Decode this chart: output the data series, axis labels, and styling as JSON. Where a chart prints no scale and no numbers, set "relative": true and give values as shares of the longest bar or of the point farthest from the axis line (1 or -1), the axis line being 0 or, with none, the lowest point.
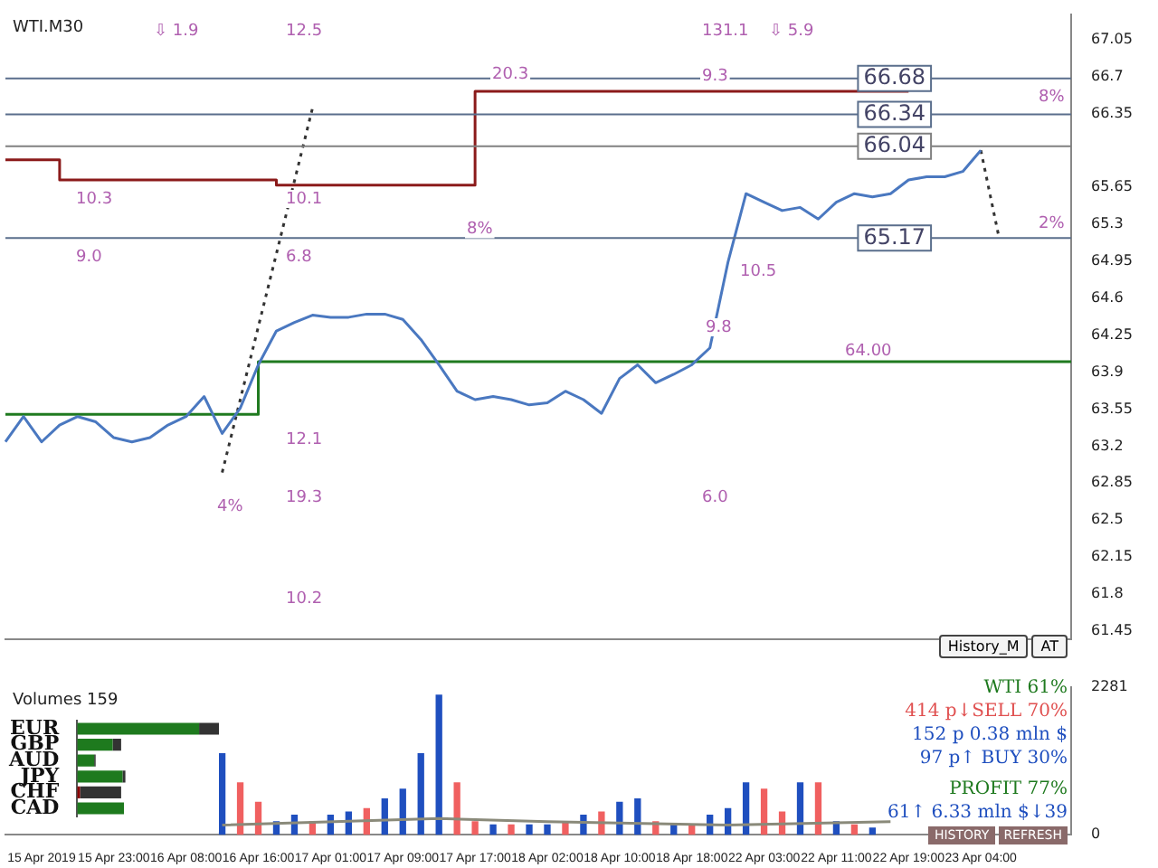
{
  "chart_data": [
    {
      "type": "line",
      "title": "WTI.M30",
      "ylim": [
        61.37,
        67.29
      ],
      "yticks": [
        67.05,
        66.7,
        66.35,
        65.65,
        65.3,
        64.95,
        64.6,
        64.25,
        63.9,
        63.55,
        63.2,
        62.85,
        62.5,
        62.15,
        61.8,
        61.45
      ],
      "grid": false,
      "legend": false,
      "marker": "none",
      "categories": [
        null,
        null,
        null,
        null,
        null,
        null,
        null,
        null,
        null,
        null,
        null,
        null,
        null,
        null,
        null,
        null,
        null,
        null,
        null,
        null,
        null,
        null,
        null,
        null,
        null,
        null,
        null,
        null,
        null,
        null,
        null,
        null,
        null,
        null,
        null,
        null,
        null,
        null,
        null,
        null,
        null,
        null,
        null,
        null,
        null,
        null,
        null,
        null,
        null,
        null,
        null,
        null,
        null,
        null,
        null,
        null,
        null,
        null,
        null,
        null
      ],
      "series": [
        {
          "color": "#4a78c0",
          "values": [
            63.24,
            63.48,
            63.24,
            63.4,
            63.48,
            63.43,
            63.28,
            63.24,
            63.28,
            63.4,
            63.48,
            63.67,
            63.32,
            63.56,
            63.97,
            64.29,
            64.37,
            64.44,
            64.42,
            64.42,
            64.45,
            64.45,
            64.4,
            64.21,
            63.97,
            63.72,
            63.64,
            63.67,
            63.64,
            63.59,
            63.61,
            63.72,
            63.64,
            63.51,
            63.84,
            63.97,
            63.8,
            63.88,
            63.97,
            64.13,
            64.94,
            65.59,
            65.51,
            65.43,
            65.46,
            65.35,
            65.51,
            65.59,
            65.56,
            65.59,
            65.72,
            65.75,
            65.75,
            65.8,
            66.0,
            null,
            null,
            null,
            null,
            null
          ]
        },
        {
          "type": "step",
          "color": "#1f7a1f",
          "values": [
            63.5,
            63.5,
            63.5,
            63.5,
            63.5,
            63.5,
            63.5,
            63.5,
            63.5,
            63.5,
            63.5,
            63.5,
            63.5,
            63.5,
            63.5,
            64.0,
            64.0,
            64.0,
            64.0,
            64.0,
            64.0,
            64.0,
            64.0,
            64.0,
            64.0,
            64.0,
            64.0,
            64.0,
            64.0,
            64.0,
            64.0,
            64.0,
            64.0,
            64.0,
            64.0,
            64.0,
            64.0,
            64.0,
            64.0,
            64.0,
            64.0,
            64.0,
            64.0,
            64.0,
            64.0,
            64.0,
            64.0,
            64.0,
            64.0,
            64.0,
            64.0,
            64.0,
            64.0,
            64.0,
            64.0,
            64.0,
            64.0,
            64.0,
            64.0,
            64.0
          ]
        },
        {
          "type": "step",
          "color": "#8b1a1a",
          "values": [
            65.91,
            65.91,
            65.91,
            65.91,
            65.72,
            65.72,
            65.72,
            65.72,
            65.72,
            65.72,
            65.72,
            65.72,
            65.72,
            65.72,
            65.72,
            65.72,
            65.67,
            65.67,
            65.67,
            65.67,
            65.67,
            65.67,
            65.67,
            65.67,
            65.67,
            65.67,
            65.67,
            66.56,
            66.56,
            66.56,
            66.56,
            66.56,
            66.56,
            66.56,
            66.56,
            66.56,
            66.56,
            66.56,
            66.56,
            66.56,
            66.56,
            66.56,
            66.56,
            66.56,
            66.56,
            66.56,
            66.56,
            66.56,
            66.56,
            66.56,
            66.56,
            null,
            null,
            null,
            null,
            null,
            null,
            null,
            null,
            null
          ]
        },
        {
          "type": "line",
          "color": "#333333",
          "line_style": "dotted",
          "values": [
            null,
            null,
            null,
            null,
            null,
            null,
            null,
            null,
            null,
            null,
            null,
            null,
            62.95,
            null,
            null,
            null,
            null,
            66.4,
            null,
            null,
            null,
            null,
            null,
            null,
            null,
            null,
            null,
            null,
            null,
            null,
            null,
            null,
            null,
            null,
            null,
            null,
            null,
            null,
            null,
            null,
            null,
            null,
            null,
            null,
            null,
            null,
            null,
            null,
            null,
            null,
            null,
            null,
            null,
            null,
            null,
            null,
            null,
            null,
            null,
            null
          ]
        },
        {
          "type": "line",
          "color": "#333333",
          "line_style": "dotted",
          "values": [
            null,
            null,
            null,
            null,
            null,
            null,
            null,
            null,
            null,
            null,
            null,
            null,
            null,
            null,
            null,
            null,
            null,
            null,
            null,
            null,
            null,
            null,
            null,
            null,
            null,
            null,
            null,
            null,
            null,
            null,
            null,
            null,
            null,
            null,
            null,
            null,
            null,
            null,
            null,
            null,
            null,
            null,
            null,
            null,
            null,
            null,
            null,
            null,
            null,
            null,
            null,
            null,
            null,
            null,
            66.0,
            65.18,
            null,
            null,
            null,
            null
          ]
        }
      ],
      "ref_lines": [
        {
          "axis": "y",
          "value": 66.68,
          "label": "66.68",
          "color": "#5a6e8c"
        },
        {
          "axis": "y",
          "value": 66.34,
          "label": "66.34",
          "color": "#5a6e8c"
        },
        {
          "axis": "y",
          "value": 66.04,
          "label": "66.04",
          "color": "#808080"
        },
        {
          "axis": "y",
          "value": 65.17,
          "label": "65.17",
          "color": "#5a6e8c"
        }
      ],
      "annotations": [
        "⇩ 1.9",
        "12.5",
        "131.1",
        "⇩ 5.9",
        {
          "text": "20.3",
          "y": 66.62
        },
        {
          "text": "9.3",
          "y": 66.6
        },
        {
          "text": "8%",
          "y": 66.4
        },
        "10.3",
        "10.1",
        "9.0",
        "6.8",
        {
          "text": "8%",
          "y": 65.15
        },
        {
          "text": "2%",
          "y": 65.2
        },
        "10.5",
        "9.8",
        {
          "text": "64.00",
          "y": 64.0
        },
        "12.1",
        "19.3",
        "4%",
        "6.0",
        "10.2",
        "History_M",
        "AT"
      ]
    },
    {
      "type": "bar",
      "title": "Volumes 159",
      "ylim": [
        0,
        2281
      ],
      "yticks": [
        0,
        2281
      ],
      "grid": false,
      "legend": false,
      "categories": [
        null,
        null,
        "15 Apr 2019",
        null,
        null,
        null,
        "15 Apr 23:00",
        null,
        null,
        null,
        "16 Apr 08:00",
        null,
        null,
        null,
        "16 Apr 16:00",
        null,
        null,
        null,
        "17 Apr 01:00",
        null,
        null,
        null,
        "17 Apr 09:00",
        null,
        null,
        null,
        "17 Apr 17:00",
        null,
        null,
        null,
        "18 Apr 02:00",
        null,
        null,
        null,
        "18 Apr 10:00",
        null,
        null,
        null,
        "18 Apr 18:00",
        null,
        null,
        null,
        "22 Apr 03:00",
        null,
        null,
        null,
        "22 Apr 11:00",
        null,
        null,
        null,
        "22 Apr 19:00",
        null,
        null,
        null,
        "23 Apr 04:00",
        null,
        null,
        null,
        null,
        null
      ],
      "series": [
        {
          "values": [
            null,
            null,
            null,
            null,
            null,
            null,
            null,
            null,
            null,
            null,
            null,
            null,
            1250,
            800,
            500,
            200,
            300,
            200,
            300,
            350,
            400,
            550,
            700,
            1250,
            2150,
            800,
            200,
            150,
            150,
            150,
            150,
            200,
            300,
            350,
            500,
            550,
            200,
            150,
            150,
            300,
            400,
            800,
            700,
            350,
            800,
            800,
            200,
            150,
            100,
            null,
            null,
            null,
            null,
            null,
            null,
            null,
            null,
            null,
            null,
            null
          ],
          "colors": [
            "#1f4fbf",
            "#1f4fbf",
            "#1f4fbf",
            "#1f4fbf",
            "#1f4fbf",
            "#1f4fbf",
            "#1f4fbf",
            "#1f4fbf",
            "#1f4fbf",
            "#1f4fbf",
            "#1f4fbf",
            "#1f4fbf",
            "#1f4fbf",
            "#f06060",
            "#f06060",
            "#1f4fbf",
            "#1f4fbf",
            "#f06060",
            "#1f4fbf",
            "#1f4fbf",
            "#f06060",
            "#1f4fbf",
            "#1f4fbf",
            "#1f4fbf",
            "#1f4fbf",
            "#f06060",
            "#f06060",
            "#1f4fbf",
            "#f06060",
            "#1f4fbf",
            "#1f4fbf",
            "#f06060",
            "#1f4fbf",
            "#f06060",
            "#1f4fbf",
            "#1f4fbf",
            "#f06060",
            "#1f4fbf",
            "#f06060",
            "#1f4fbf",
            "#1f4fbf",
            "#1f4fbf",
            "#f06060",
            "#f06060",
            "#1f4fbf",
            "#f06060",
            "#1f4fbf",
            "#f06060",
            "#1f4fbf",
            "#1f4fbf",
            "#1f4fbf",
            "#1f4fbf",
            "#1f4fbf",
            "#1f4fbf",
            "#1f4fbf",
            "#1f4fbf",
            "#1f4fbf",
            "#1f4fbf",
            "#1f4fbf",
            "#1f4fbf"
          ]
        },
        {
          "type": "line",
          "color": "#8a8a7a",
          "values": [
            null,
            null,
            null,
            null,
            null,
            null,
            null,
            null,
            null,
            null,
            null,
            null,
            150,
            null,
            null,
            null,
            null,
            null,
            null,
            null,
            null,
            null,
            null,
            null,
            250,
            null,
            null,
            null,
            null,
            null,
            200,
            null,
            null,
            null,
            null,
            null,
            null,
            null,
            null,
            null,
            150,
            null,
            null,
            null,
            null,
            null,
            null,
            null,
            null,
            200,
            null,
            null,
            null,
            null,
            null,
            null,
            null,
            null,
            null,
            null
          ]
        }
      ]
    },
    {
      "type": "bar",
      "orientation": "horizontal",
      "stacked": true,
      "relative": true,
      "legend": false,
      "grid": false,
      "tick_labels": "y",
      "categories": [
        "EUR",
        "GBP",
        "AUD",
        "JPY",
        "CHF",
        "CAD"
      ],
      "series": [
        {
          "color": "#1e7a1e",
          "values": [
            0.86,
            0.25,
            0.12,
            0.32,
            0,
            0.33
          ]
        },
        {
          "color": "#8b0000",
          "values": [
            0,
            0,
            0,
            0,
            0.02,
            0
          ]
        },
        {
          "color": "#333333",
          "values": [
            0.14,
            0.06,
            0.01,
            0.02,
            0.29,
            0
          ]
        }
      ]
    },
    {
      "type": "other",
      "annotations": [
        "WTI 61%",
        "414 p↓SELL 70%",
        "152 p   0.38 mln $",
        "97 p↑ BUY 30%",
        "PROFIT 77%",
        "61↑  6.33 mln $↓39",
        "HISTORY",
        "REFRESH"
      ]
    }
  ]
}
